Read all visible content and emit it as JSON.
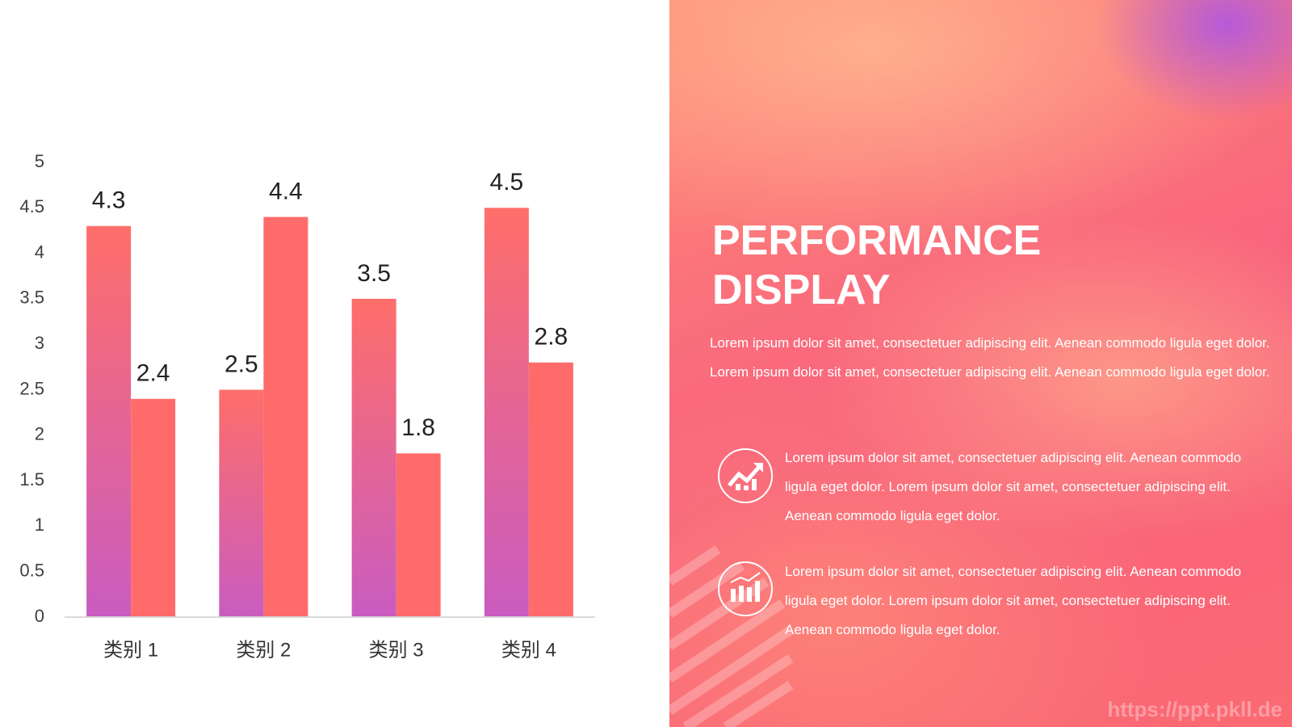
{
  "chart_data": {
    "type": "bar",
    "categories": [
      "类别 1",
      "类别 2",
      "类别 3",
      "类别 4"
    ],
    "series": [
      {
        "color": "#ff6e6a",
        "values": [
          4.3,
          2.5,
          3.5,
          4.5
        ]
      },
      {
        "color": "#ff6b6b",
        "values": [
          2.4,
          4.4,
          1.8,
          2.8
        ]
      }
    ],
    "ylim": [
      0,
      5
    ],
    "yticks": [
      0,
      0.5,
      1,
      1.5,
      2,
      2.5,
      3,
      3.5,
      4,
      4.5,
      5
    ],
    "grid": false,
    "data_labels": true
  },
  "panel": {
    "title": [
      "PERFORMANCE",
      "DISPLAY"
    ],
    "intro": "Lorem ipsum dolor sit amet, consectetuer adipiscing elit. Aenean commodo ligula eget dolor. Lorem ipsum dolor sit amet, consectetuer adipiscing elit. Aenean commodo ligula eget dolor.",
    "items": [
      {
        "text": "Lorem ipsum dolor sit amet, consectetuer adipiscing elit. Aenean commodo ligula eget dolor. Lorem ipsum dolor sit amet, consectetuer adipiscing elit. Aenean commodo ligula eget dolor."
      },
      {
        "text": "Lorem ipsum dolor sit amet, consectetuer adipiscing elit. Aenean commodo ligula eget dolor. Lorem ipsum dolor sit amet, consectetuer adipiscing elit. Aenean commodo ligula eget dolor."
      }
    ],
    "watermark": "https://ppt.pkll.de"
  }
}
